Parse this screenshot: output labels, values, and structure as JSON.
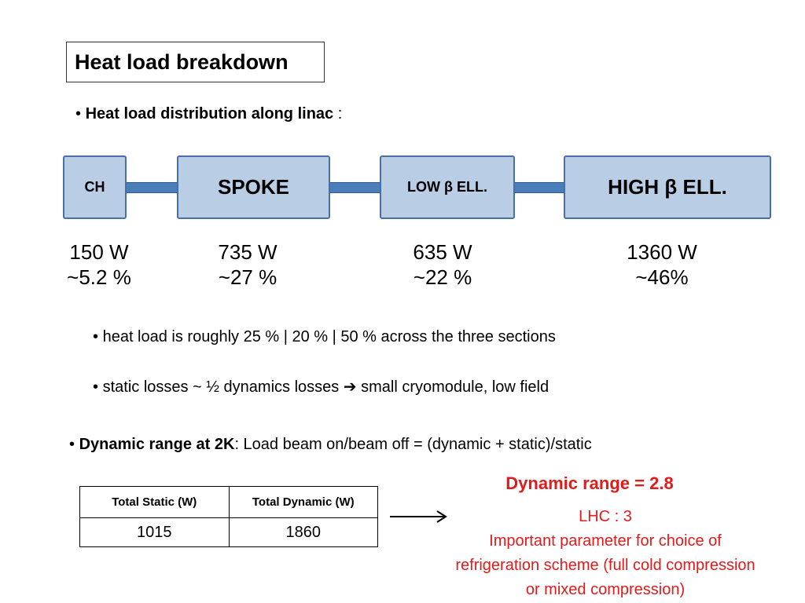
{
  "title": "Heat load breakdown",
  "bullet_distribution": {
    "bullet": "•",
    "bold_text": "Heat load distribution along linac",
    "suffix": " :"
  },
  "sections": [
    {
      "label": "CH",
      "power": "150 W",
      "percent": "~5.2 %"
    },
    {
      "label": "SPOKE",
      "power": "735 W",
      "percent": "~27 %"
    },
    {
      "label": "LOW β ELL.",
      "power": "635 W",
      "percent": "~22 %"
    },
    {
      "label": "HIGH β ELL.",
      "power": "1360 W",
      "percent": "~46%"
    }
  ],
  "notes": [
    {
      "bullet": "•",
      "text": "heat load is roughly 25 % | 20 % | 50 %  across the three sections"
    },
    {
      "bullet": "•",
      "text_before": "static losses ~ ½ dynamics losses ",
      "arrow": "➔",
      "text_after": " small cryomodule, low field"
    }
  ],
  "dynamic_bullet": {
    "bullet": "•",
    "bold_text": "Dynamic range at 2K",
    "text": ":   Load beam on/beam off = (dynamic + static)/static"
  },
  "table": {
    "headers": [
      "Total Static (W)",
      "Total Dynamic (W)"
    ],
    "rows": [
      [
        "1015",
        "1860"
      ]
    ]
  },
  "result": {
    "headline": "Dynamic range =  2.8",
    "lines": [
      "LHC : 3",
      "Important parameter for choice of",
      "refrigeration scheme (full cold compression",
      "or mixed compression)"
    ]
  },
  "colors": {
    "box_fill": "#b9cde5",
    "box_border": "#4a6fa5",
    "connector": "#4a7ebb",
    "highlight_red": "#e01b1b"
  }
}
